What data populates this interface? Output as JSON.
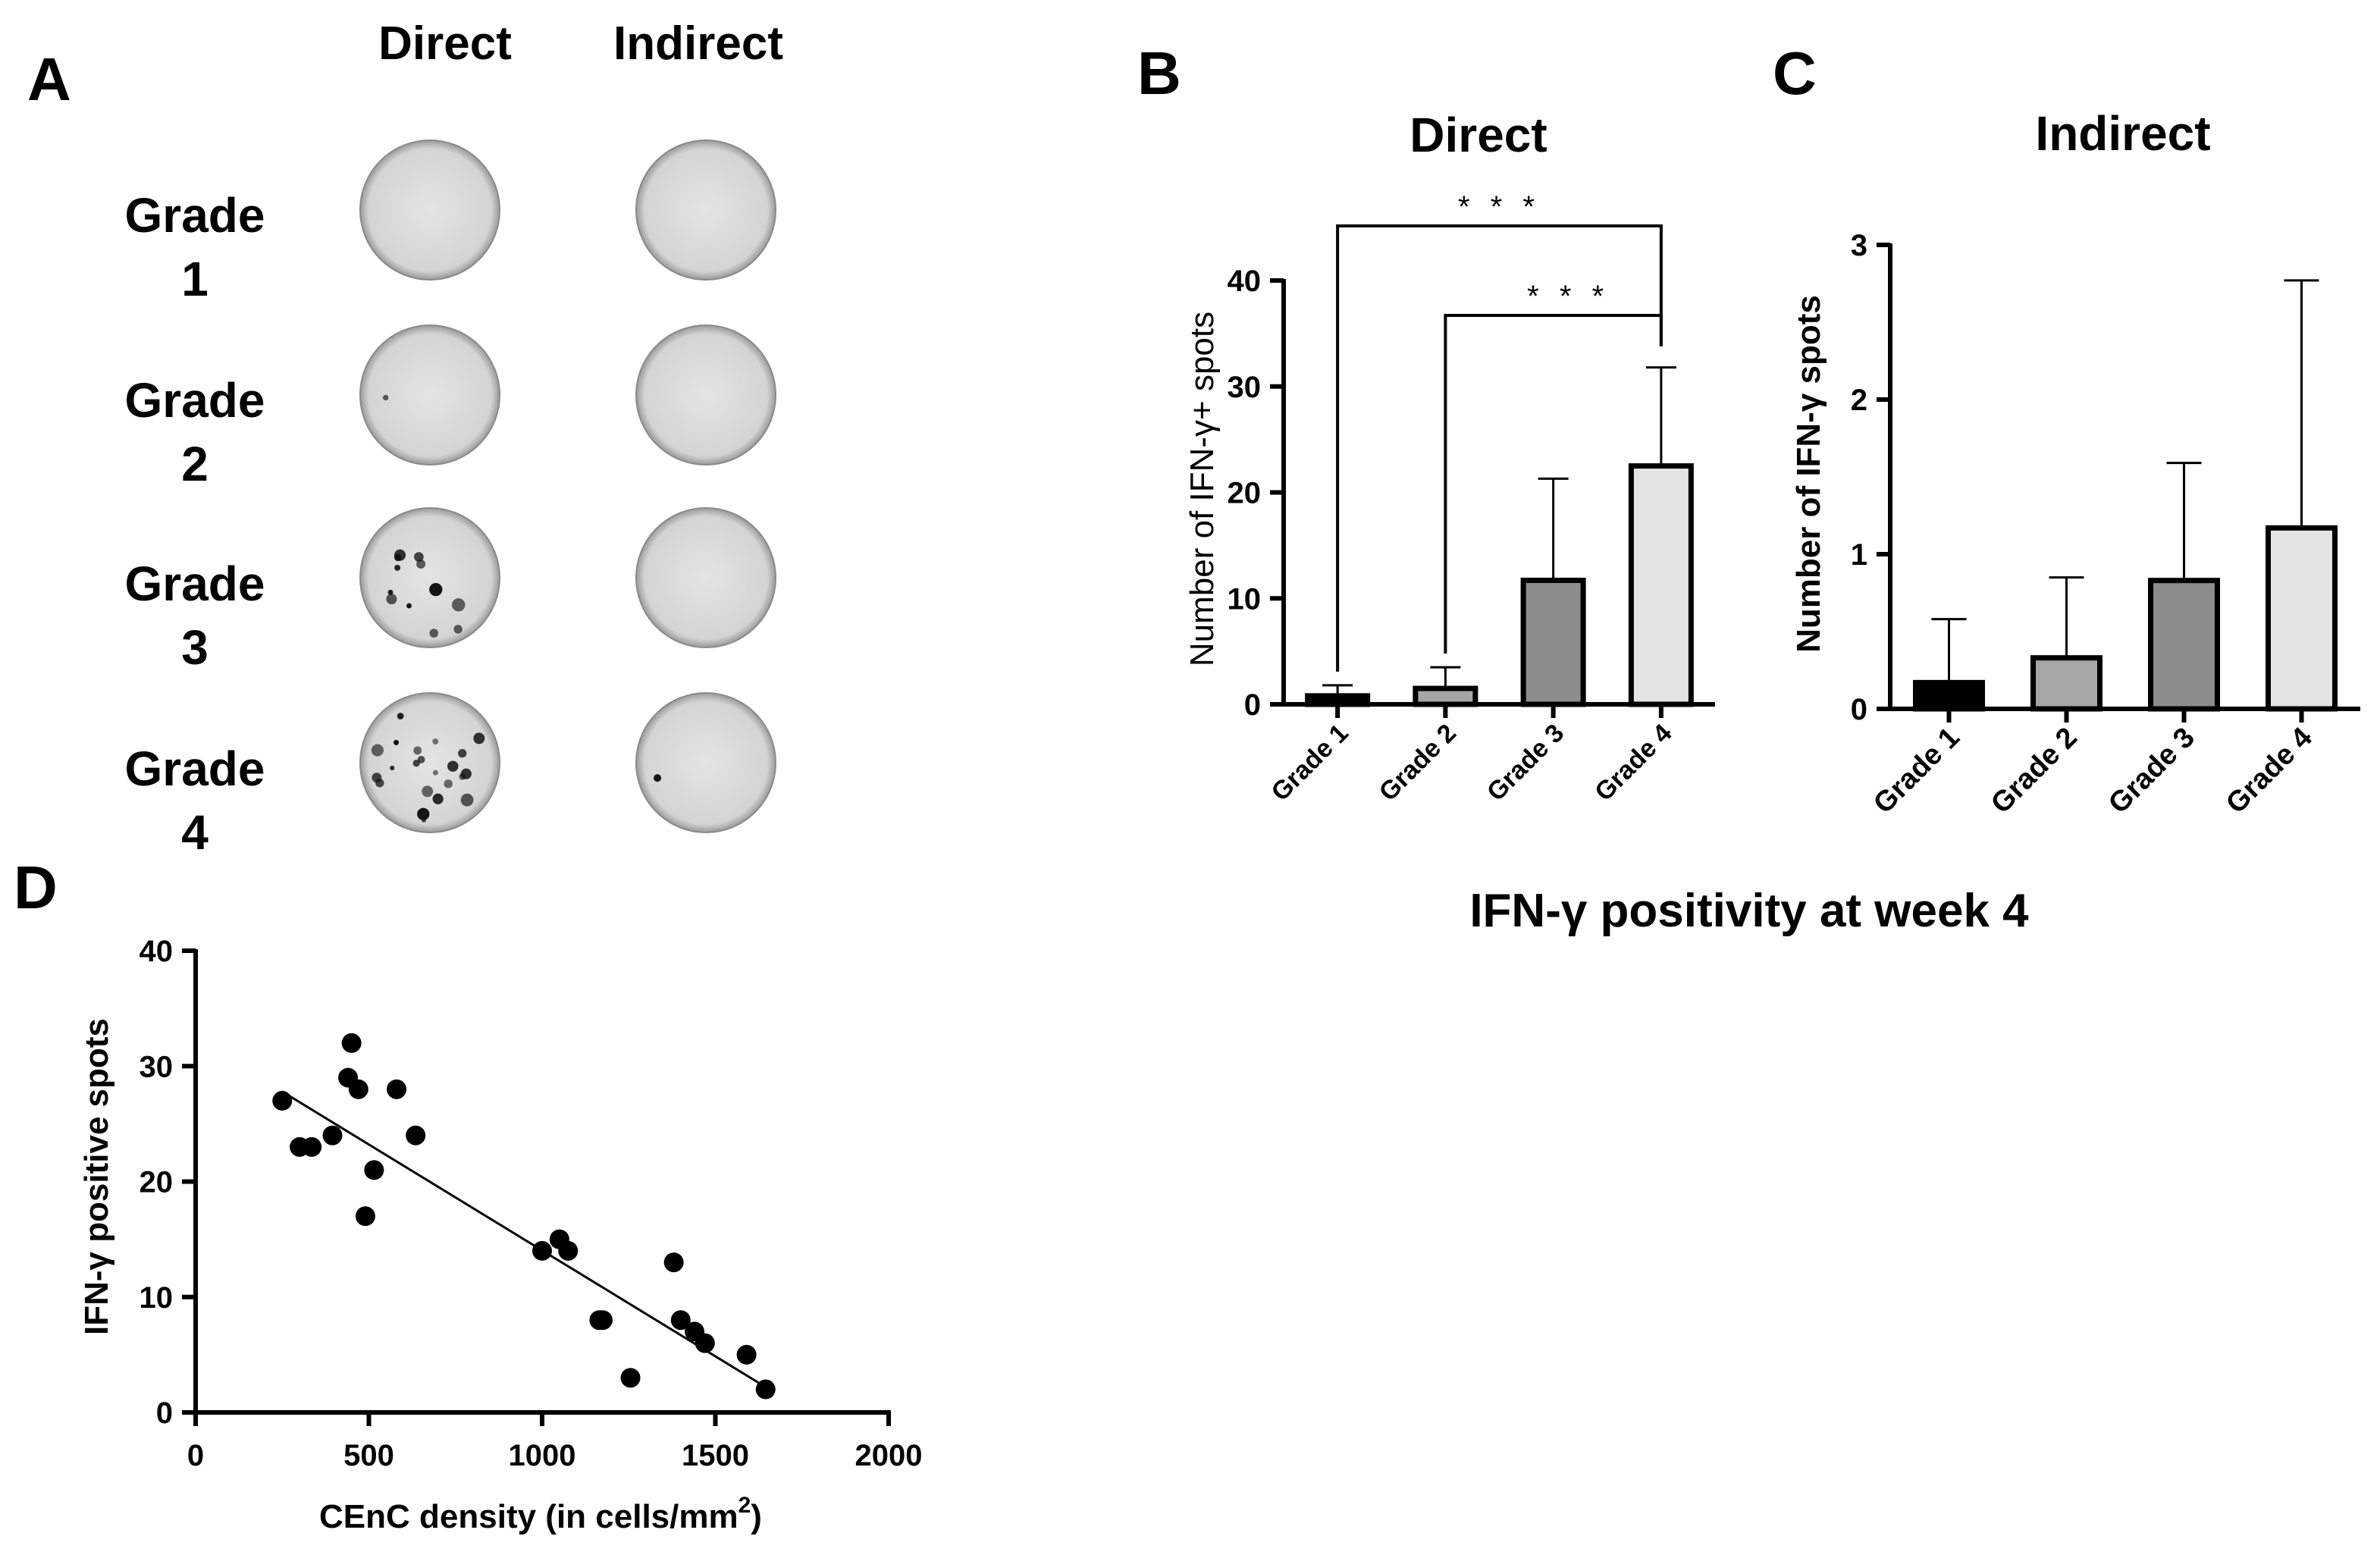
{
  "panels": {
    "A": {
      "letter": "A",
      "columns": [
        "Direct",
        "Indirect"
      ],
      "rows": [
        {
          "line1": "Grade",
          "line2": "1",
          "direct_spots": 0,
          "indirect_spots": 0
        },
        {
          "line1": "Grade",
          "line2": "2",
          "direct_spots": 1,
          "indirect_spots": 0
        },
        {
          "line1": "Grade",
          "line2": "3",
          "direct_spots": 12,
          "indirect_spots": 0
        },
        {
          "line1": "Grade",
          "line2": "4",
          "direct_spots": 22,
          "indirect_spots": 1
        }
      ]
    },
    "B": {
      "letter": "B"
    },
    "C": {
      "letter": "C"
    },
    "D": {
      "letter": "D"
    }
  },
  "shared_caption": "IFN-γ positivity at week 4",
  "colors": {
    "grade_1": "#000000",
    "grade_2": "#a6a6a6",
    "grade_3": "#8c8c8c",
    "grade_4": "#e3e3e3",
    "well_light": "#e4e4e4",
    "well_edge": "#9a9a9a",
    "spot": "#111111"
  },
  "chart_data": [
    {
      "panel": "B",
      "type": "bar",
      "title": "Direct",
      "ylabel": "Number of IFN-γ+  spots",
      "xlabel": "",
      "categories": [
        "Grade 1",
        "Grade 2",
        "Grade 3",
        "Grade 4"
      ],
      "values": [
        0.8,
        1.5,
        11.7,
        22.5
      ],
      "error_upper": [
        1.8,
        3.5,
        21.3,
        31.8
      ],
      "ylim": [
        0,
        40
      ],
      "yticks": [
        "0",
        "10",
        "20",
        "30",
        "40"
      ],
      "grid": false,
      "significance": [
        {
          "from": "Grade 1",
          "to": "Grade 4",
          "label": "* * *"
        },
        {
          "from": "Grade 2",
          "to": "Grade 4",
          "label": "* * *"
        }
      ]
    },
    {
      "panel": "C",
      "type": "bar",
      "title": "Indirect",
      "ylabel": "Number of IFN-γ spots",
      "xlabel": "",
      "categories": [
        "Grade 1",
        "Grade 2",
        "Grade 3",
        "Grade 4"
      ],
      "values": [
        0.17,
        0.33,
        0.83,
        1.17
      ],
      "error_upper": [
        0.58,
        0.85,
        1.59,
        2.77
      ],
      "ylim": [
        0,
        3
      ],
      "yticks": [
        "0",
        "1",
        "2",
        "3"
      ],
      "grid": false
    },
    {
      "panel": "D",
      "type": "scatter",
      "title": "",
      "xlabel_prefix": "CEnC density (in cells/mm",
      "xlabel_sup": "2",
      "xlabel_suffix": ")",
      "ylabel": "IFN-γ positive spots",
      "xlim": [
        0,
        2000
      ],
      "ylim": [
        0,
        40
      ],
      "xticks": [
        "0",
        "500",
        "1000",
        "1500",
        "2000"
      ],
      "yticks": [
        "0",
        "10",
        "20",
        "30",
        "40"
      ],
      "grid": false,
      "points": [
        [
          250,
          27
        ],
        [
          300,
          23
        ],
        [
          335,
          23
        ],
        [
          395,
          24
        ],
        [
          440,
          29
        ],
        [
          450,
          32
        ],
        [
          470,
          28
        ],
        [
          490,
          17
        ],
        [
          515,
          21
        ],
        [
          580,
          28
        ],
        [
          635,
          24
        ],
        [
          1000,
          14
        ],
        [
          1050,
          15
        ],
        [
          1075,
          14
        ],
        [
          1165,
          8
        ],
        [
          1175,
          8
        ],
        [
          1255,
          3
        ],
        [
          1380,
          13
        ],
        [
          1400,
          8
        ],
        [
          1440,
          7
        ],
        [
          1470,
          6
        ],
        [
          1590,
          5
        ],
        [
          1645,
          2
        ]
      ],
      "fit_line": [
        [
          250,
          27.8
        ],
        [
          1645,
          2.2
        ]
      ]
    }
  ]
}
